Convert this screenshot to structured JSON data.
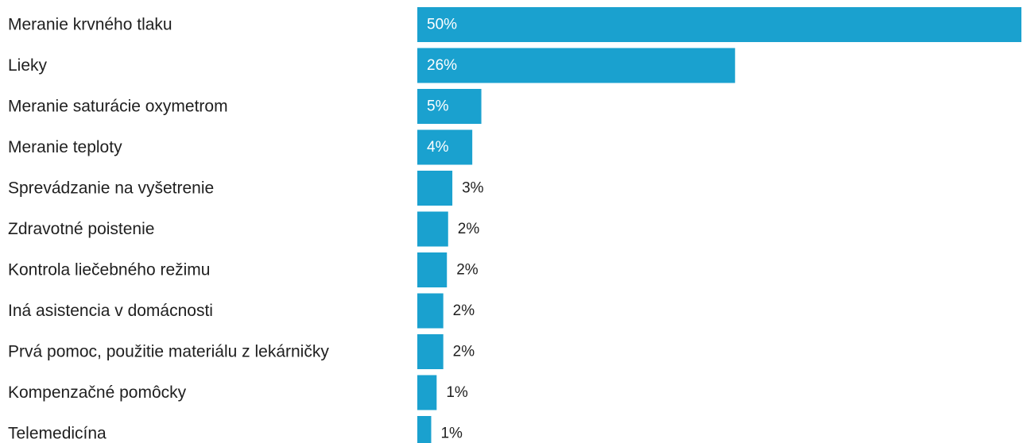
{
  "chart_data": {
    "type": "bar",
    "orientation": "horizontal",
    "categories": [
      "Meranie krvného tlaku",
      "Lieky",
      "Meranie saturácie oxymetrom",
      "Meranie teploty",
      "Sprevádzanie na vyšetrenie",
      "Zdravotné poistenie",
      "Kontrola liečebného režimu",
      "Iná asistencia v domácnosti",
      "Prvá pomoc, použitie materiálu z lekárničky",
      "Kompenzačné pomôcky",
      "Telemedicína"
    ],
    "values": [
      50,
      26,
      5,
      4,
      3,
      2,
      2,
      2,
      2,
      1,
      1
    ],
    "value_labels": [
      "50%",
      "26%",
      "5%",
      "4%",
      "3%",
      "2%",
      "2%",
      "2%",
      "2%",
      "1%",
      "1%"
    ],
    "bar_fill_proportions": [
      1.0,
      0.526,
      0.106,
      0.091,
      0.058,
      0.051,
      0.049,
      0.043,
      0.043,
      0.032,
      0.023
    ],
    "unit": "%",
    "grid": false,
    "legend": "none",
    "colors": {
      "bar": "#1aa1cf",
      "label_inside": "#ffffff",
      "label_outside": "#1f1f1f",
      "category_text": "#1f1f1f"
    }
  }
}
